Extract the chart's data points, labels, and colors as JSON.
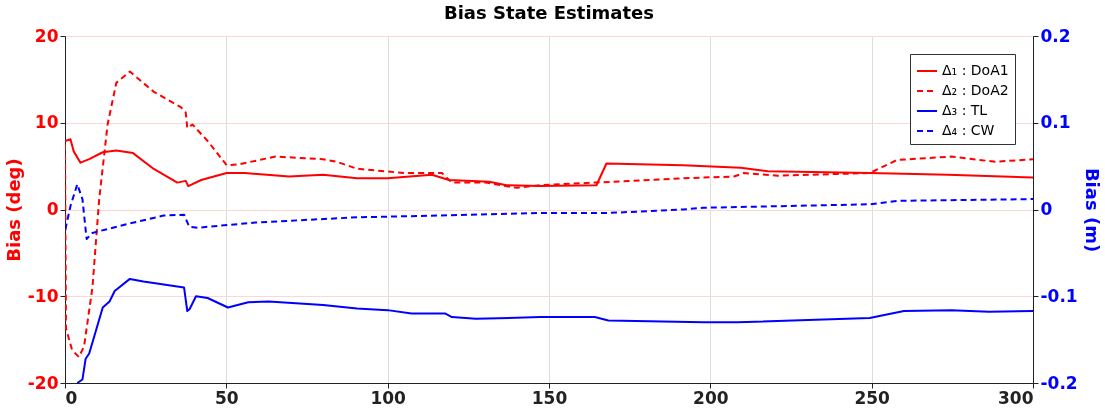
{
  "chart_data": {
    "type": "line",
    "title": "Bias State Estimates",
    "ylabel": "Bias (deg)",
    "y2label": "Bias (m)",
    "xlim": [
      0,
      300
    ],
    "xticks": [
      0,
      50,
      100,
      150,
      200,
      250,
      300
    ],
    "ylim": [
      -20,
      20
    ],
    "yticks": [
      -20,
      -10,
      0,
      10,
      20
    ],
    "y2lim": [
      -0.2,
      0.2
    ],
    "y2ticks": [
      -0.2,
      -0.1,
      0,
      0.1,
      0.2
    ],
    "grid": true,
    "legend": "top right",
    "series": [
      {
        "name": "Δ₁ : DoA1",
        "color": "#ff0000",
        "line_style": "solid",
        "x": [
          0,
          1.7,
          2.7,
          4.8,
          7.5,
          11.7,
          15.9,
          21.1,
          27.4,
          34.8,
          37.4,
          38.2,
          42.2,
          50.1,
          55.8,
          69.5,
          80,
          90.5,
          100,
          113.7,
          119,
          131.5,
          136.8,
          147.3,
          164.7,
          167.8,
          191.5,
          209.4,
          217.8,
          249.4,
          273.6,
          300
        ],
        "values": [
          7.9,
          8.1,
          6.7,
          5.4,
          5.8,
          6.6,
          6.8,
          6.5,
          4.7,
          3.1,
          3.3,
          2.7,
          3.4,
          4.2,
          4.2,
          3.8,
          4.0,
          3.6,
          3.6,
          4.0,
          3.4,
          3.2,
          2.8,
          2.7,
          2.8,
          5.3,
          5.1,
          4.8,
          4.4,
          4.2,
          4.0,
          3.7
        ]
      },
      {
        "name": "Δ₂ : DoA2",
        "color": "#ff0000",
        "line_style": "dashed",
        "x": [
          0,
          0.3,
          2.2,
          4.3,
          5.9,
          8.5,
          10.6,
          13.2,
          15.9,
          20.1,
          27.4,
          35.9,
          37.4,
          37.9,
          39.5,
          44.2,
          50.1,
          53.7,
          65.3,
          80,
          84.2,
          90.5,
          105.2,
          116.8,
          119.9,
          130.4,
          139.9,
          147.3,
          164.2,
          191.5,
          207.3,
          210.4,
          220.9,
          249.4,
          257.8,
          274.7,
          288.3,
          300
        ],
        "values": [
          7.5,
          -13.7,
          -16.2,
          -17.0,
          -15.8,
          -9.0,
          1.2,
          9.8,
          14.6,
          15.9,
          13.6,
          11.8,
          11.2,
          9.4,
          9.8,
          7.9,
          5.1,
          5.2,
          6.1,
          5.8,
          5.5,
          4.7,
          4.2,
          4.2,
          3.1,
          3.1,
          2.5,
          2.8,
          3.1,
          3.6,
          3.8,
          4.2,
          3.9,
          4.2,
          5.7,
          6.1,
          5.5,
          5.8
        ]
      },
      {
        "name": "Δ₃ : TL",
        "color": "#0000ff",
        "line_style": "solid",
        "axis": "y2",
        "x": [
          3.8,
          5.4,
          6.4,
          7.5,
          11.7,
          13.8,
          15.4,
          20.1,
          24.3,
          36.9,
          37.9,
          38.6,
          40.6,
          44.2,
          50.5,
          56.8,
          63.1,
          80,
          90.5,
          100,
          107.4,
          117.9,
          119.9,
          127.3,
          147.3,
          164.2,
          168.4,
          197.8,
          208.4,
          249.4,
          260,
          274.7,
          286.3,
          300
        ],
        "values": [
          -0.2,
          -0.196,
          -0.172,
          -0.166,
          -0.113,
          -0.106,
          -0.094,
          -0.08,
          -0.083,
          -0.09,
          -0.117,
          -0.115,
          -0.1,
          -0.102,
          -0.113,
          -0.107,
          -0.106,
          -0.11,
          -0.114,
          -0.116,
          -0.12,
          -0.12,
          -0.124,
          -0.126,
          -0.124,
          -0.124,
          -0.128,
          -0.13,
          -0.13,
          -0.125,
          -0.117,
          -0.116,
          -0.118,
          -0.117
        ]
      },
      {
        "name": "Δ₄ : CW",
        "color": "#0000ff",
        "line_style": "dashed",
        "axis": "y2",
        "x": [
          0.1,
          1.7,
          3.8,
          5.4,
          6.7,
          8.5,
          19,
          30.6,
          36.9,
          38.5,
          41.2,
          59,
          90.5,
          115.8,
          147.3,
          168.4,
          191.5,
          197.8,
          249.4,
          258,
          300
        ],
        "values": [
          -0.023,
          0.004,
          0.029,
          0.012,
          -0.034,
          -0.027,
          -0.017,
          -0.007,
          -0.006,
          -0.02,
          -0.021,
          -0.015,
          -0.009,
          -0.007,
          -0.004,
          -0.004,
          0.0,
          0.002,
          0.006,
          0.01,
          0.012
        ]
      }
    ]
  }
}
